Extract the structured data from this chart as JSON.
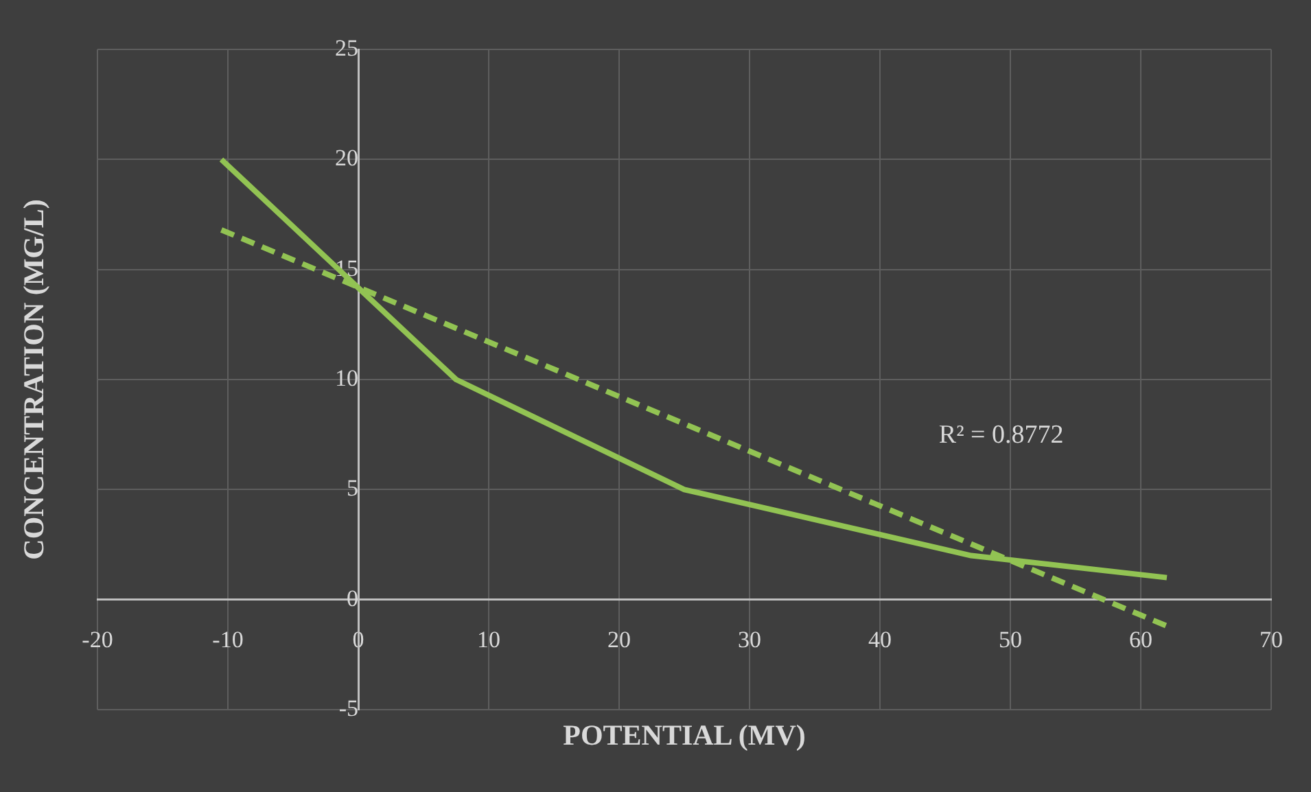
{
  "chart_data": {
    "type": "line",
    "xlabel": "POTENTIAL (MV)",
    "ylabel": "CONCENTRATION (MG/L)",
    "series": [
      {
        "color": "#92c353",
        "x": [
          -10.5,
          7.5,
          25,
          47,
          62
        ],
        "values": [
          20,
          10,
          5,
          2,
          1
        ],
        "line_style": "solid"
      },
      {
        "type": "line",
        "color": "#92c353",
        "x": [
          -10.5,
          62
        ],
        "values": [
          16.8,
          -1.2
        ],
        "line_style": "dashed"
      }
    ],
    "xlim": [
      -20,
      70
    ],
    "xticks": [
      -20,
      -10,
      0,
      10,
      20,
      30,
      40,
      50,
      60,
      70
    ],
    "ylim": [
      -5,
      25
    ],
    "yticks": [
      -5,
      0,
      5,
      10,
      15,
      20,
      25
    ],
    "grid": true,
    "legend": false,
    "marker": "none",
    "annotations": [
      "R² = 0.8772"
    ]
  }
}
